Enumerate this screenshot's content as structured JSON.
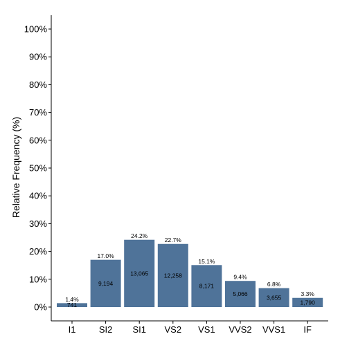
{
  "chart_data": {
    "type": "bar",
    "title": "",
    "xlabel": "",
    "ylabel": "Relative Frequency (%)",
    "ylim": [
      0,
      100
    ],
    "yticks": [
      "0%",
      "10%",
      "20%",
      "30%",
      "40%",
      "50%",
      "60%",
      "70%",
      "80%",
      "90%",
      "100%"
    ],
    "grid": false,
    "bar_color": "#4f7399",
    "categories": [
      "I1",
      "SI2",
      "SI1",
      "VS2",
      "VS1",
      "VVS2",
      "VVS1",
      "IF"
    ],
    "values": [
      1.4,
      17.0,
      24.2,
      22.7,
      15.1,
      9.4,
      6.8,
      3.3
    ],
    "percent_labels": [
      "1.4%",
      "17.0%",
      "24.2%",
      "22.7%",
      "15.1%",
      "9.4%",
      "6.8%",
      "3.3%"
    ],
    "count_labels": [
      "741",
      "9,194",
      "13,065",
      "12,258",
      "8,171",
      "5,066",
      "3,655",
      "1,790"
    ]
  }
}
